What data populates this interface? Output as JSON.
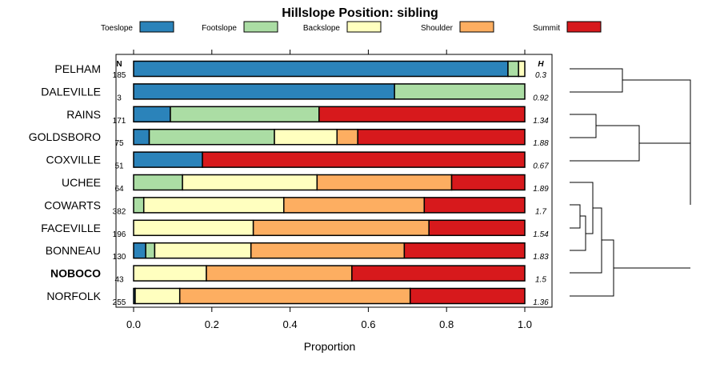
{
  "chart_data": {
    "type": "bar",
    "orientation": "horizontal-stacked",
    "title": "Hillslope Position: sibling",
    "xlabel": "Proportion",
    "xlim": [
      0,
      1
    ],
    "x_ticks": [
      "0.0",
      "0.2",
      "0.4",
      "0.6",
      "0.8",
      "1.0"
    ],
    "x_tick_values": [
      0,
      0.2,
      0.4,
      0.6,
      0.8,
      1.0
    ],
    "n_header": "N",
    "h_header": "H",
    "legend": [
      {
        "name": "Toeslope",
        "color": "#2B83BA"
      },
      {
        "name": "Footslope",
        "color": "#ABDDA4"
      },
      {
        "name": "Backslope",
        "color": "#FFFFBF"
      },
      {
        "name": "Shoulder",
        "color": "#FDAE61"
      },
      {
        "name": "Summit",
        "color": "#D7191C"
      }
    ],
    "categories": [
      "PELHAM",
      "DALEVILLE",
      "RAINS",
      "GOLDSBORO",
      "COXVILLE",
      "UCHEE",
      "COWARTS",
      "FACEVILLE",
      "BONNEAU",
      "NOBOCO",
      "NORFOLK"
    ],
    "highlight": "NOBOCO",
    "n": [
      "185",
      "3",
      "171",
      "75",
      "51",
      "64",
      "382",
      "196",
      "130",
      "43",
      "255"
    ],
    "h": [
      "0.3",
      "0.92",
      "1.34",
      "1.88",
      "0.67",
      "1.89",
      "1.7",
      "1.54",
      "1.83",
      "1.5",
      "1.36"
    ],
    "series": [
      {
        "name": "Toeslope",
        "values": [
          0.957,
          0.667,
          0.094,
          0.04,
          0.176,
          0.0,
          0.0,
          0.0,
          0.031,
          0.0,
          0.004
        ]
      },
      {
        "name": "Footslope",
        "values": [
          0.027,
          0.333,
          0.38,
          0.32,
          0.0,
          0.125,
          0.026,
          0.0,
          0.023,
          0.0,
          0.0
        ]
      },
      {
        "name": "Backslope",
        "values": [
          0.016,
          0.0,
          0.0,
          0.16,
          0.0,
          0.344,
          0.358,
          0.306,
          0.246,
          0.186,
          0.114
        ]
      },
      {
        "name": "Shoulder",
        "values": [
          0.0,
          0.0,
          0.0,
          0.053,
          0.0,
          0.344,
          0.359,
          0.449,
          0.392,
          0.372,
          0.589
        ]
      },
      {
        "name": "Summit",
        "values": [
          0.0,
          0.0,
          0.526,
          0.427,
          0.824,
          0.187,
          0.257,
          0.245,
          0.308,
          0.442,
          0.293
        ]
      }
    ]
  }
}
